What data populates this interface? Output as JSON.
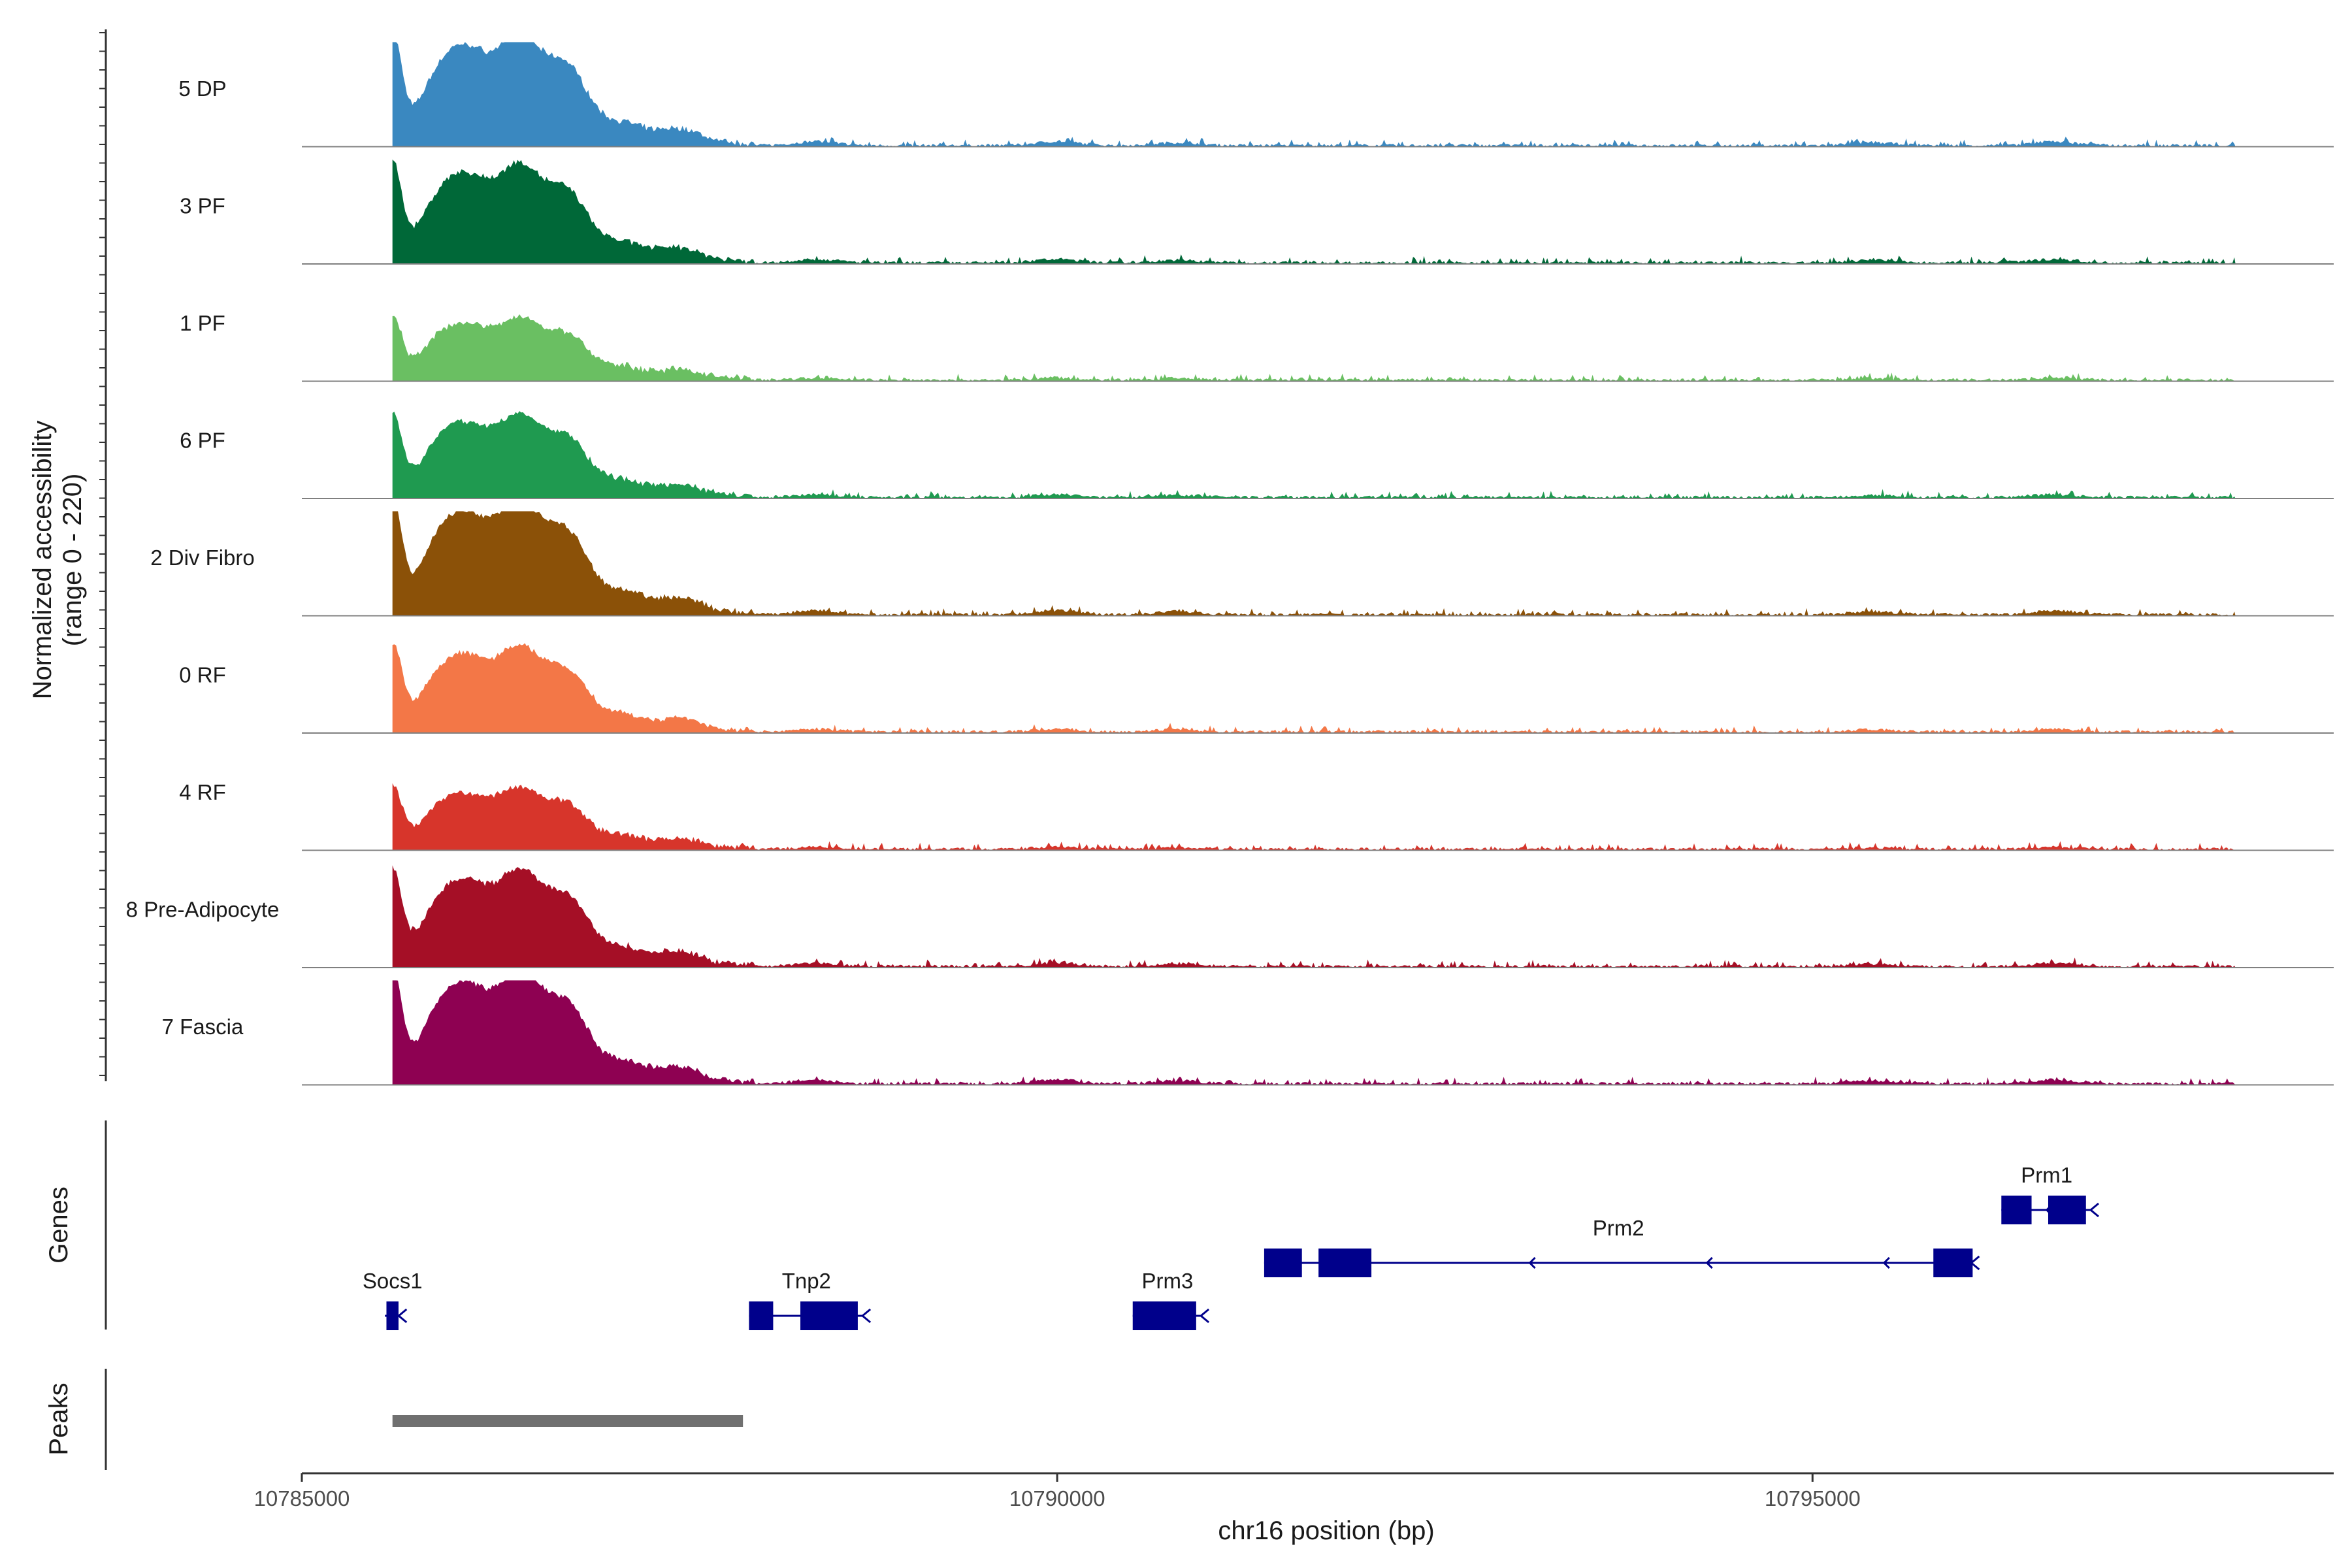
{
  "chart_data": {
    "type": "area",
    "title": "",
    "ylabel_line1": "Normalized accessibility",
    "ylabel_line2": "(range 0 - 220)",
    "ylim": [
      0,
      220
    ],
    "xlabel": "chr16 position (bp)",
    "xlim": [
      10785000,
      10798450
    ],
    "x_ticks": [
      {
        "value": 10785000,
        "label": "10785000"
      },
      {
        "value": 10790000,
        "label": "10790000"
      },
      {
        "value": 10795000,
        "label": "10795000"
      }
    ],
    "series": [
      {
        "name": "5 DP",
        "color": "#3a88c0"
      },
      {
        "name": "3 PF",
        "color": "#006838"
      },
      {
        "name": "1 PF",
        "color": "#6abf62"
      },
      {
        "name": "6 PF",
        "color": "#1f9a50"
      },
      {
        "name": "2 Div Fibro",
        "color": "#8b5108"
      },
      {
        "name": "0 RF",
        "color": "#f37747"
      },
      {
        "name": "4 RF",
        "color": "#d7352b"
      },
      {
        "name": "8 Pre-Adipocyte",
        "color": "#a50f26"
      },
      {
        "name": "7 Fascia",
        "color": "#8e0152"
      }
    ],
    "peaks_template": [
      [
        10785600,
        220
      ],
      [
        10785900,
        120
      ],
      [
        10786120,
        150
      ],
      [
        10786400,
        110
      ],
      [
        10786480,
        105
      ],
      [
        10786760,
        150
      ],
      [
        10787130,
        40
      ],
      [
        10787500,
        30
      ],
      [
        10788400,
        8
      ],
      [
        10790000,
        8
      ],
      [
        10790800,
        6
      ],
      [
        10795400,
        6
      ],
      [
        10796600,
        8
      ]
    ],
    "genes_panel_label": "Genes",
    "peaks_panel_label": "Peaks",
    "genes": [
      {
        "name": "Socs1",
        "start": 10785550,
        "end": 10785650,
        "row": 2,
        "strand": "-",
        "exons": [
          [
            10785560,
            10785640
          ]
        ]
      },
      {
        "name": "Tnp2",
        "start": 10787960,
        "end": 10788720,
        "row": 2,
        "strand": "-",
        "exons": [
          [
            10787960,
            10788120
          ],
          [
            10788300,
            10788680
          ]
        ]
      },
      {
        "name": "Prm3",
        "start": 10790500,
        "end": 10790960,
        "row": 2,
        "strand": "-",
        "exons": [
          [
            10790500,
            10790920
          ]
        ]
      },
      {
        "name": "Prm2",
        "start": 10791370,
        "end": 10796060,
        "row": 1,
        "strand": "-",
        "exons": [
          [
            10791370,
            10791620
          ],
          [
            10791730,
            10792080
          ],
          [
            10795800,
            10796060
          ]
        ]
      },
      {
        "name": "Prm1",
        "start": 10796250,
        "end": 10796850,
        "row": 0,
        "strand": "-",
        "exons": [
          [
            10796250,
            10796450
          ],
          [
            10796560,
            10796810
          ]
        ]
      }
    ],
    "peaks": [
      [
        10785600,
        10787920
      ]
    ],
    "colors": {
      "gene": "#00008b",
      "peak": "#707070",
      "baseline": "#808080"
    }
  }
}
